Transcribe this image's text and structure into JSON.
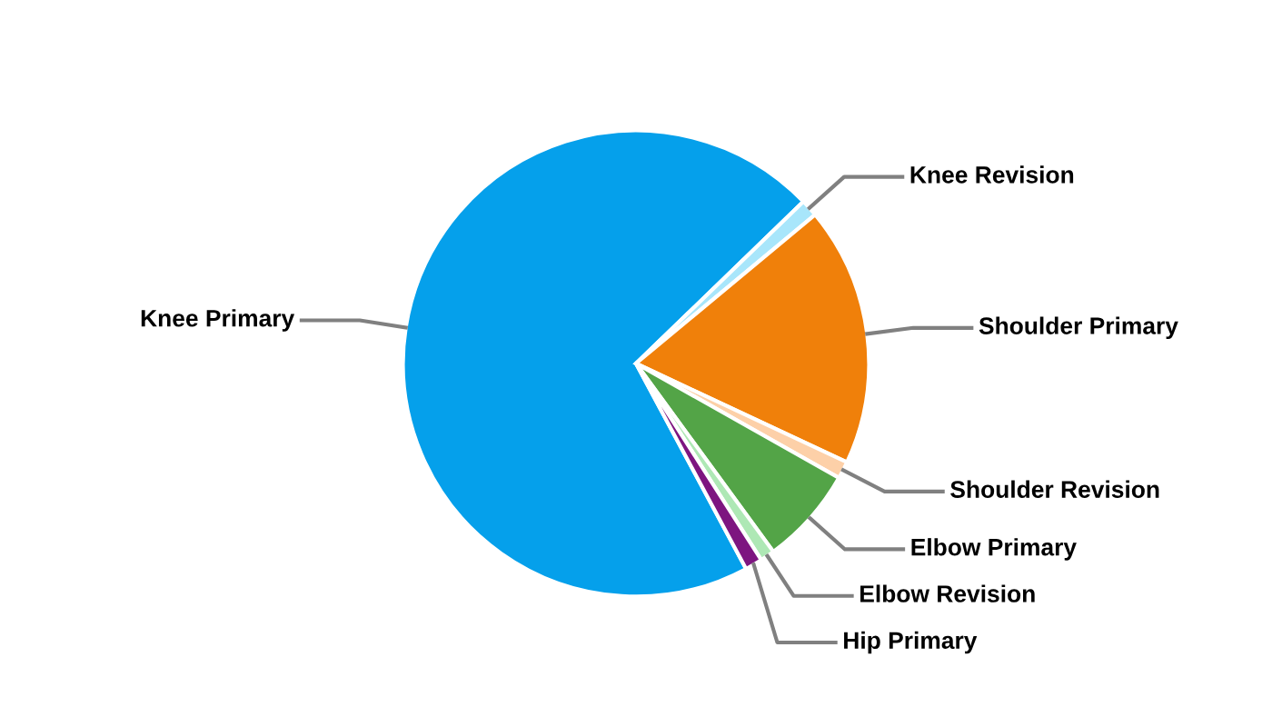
{
  "chart_data": {
    "type": "pie",
    "categories": [
      "Knee Primary",
      "Knee Revision",
      "Shoulder Primary",
      "Shoulder Revision",
      "Elbow Primary",
      "Elbow Revision",
      "Hip Primary"
    ],
    "values": [
      70.6,
      1.2,
      18,
      1.2,
      6.8,
      1,
      1.2
    ],
    "colors": [
      "#05a0eb",
      "#a8e6fb",
      "#f0800a",
      "#fdd0a8",
      "#53a447",
      "#aee8b5",
      "#7d1580"
    ],
    "legend": false
  }
}
